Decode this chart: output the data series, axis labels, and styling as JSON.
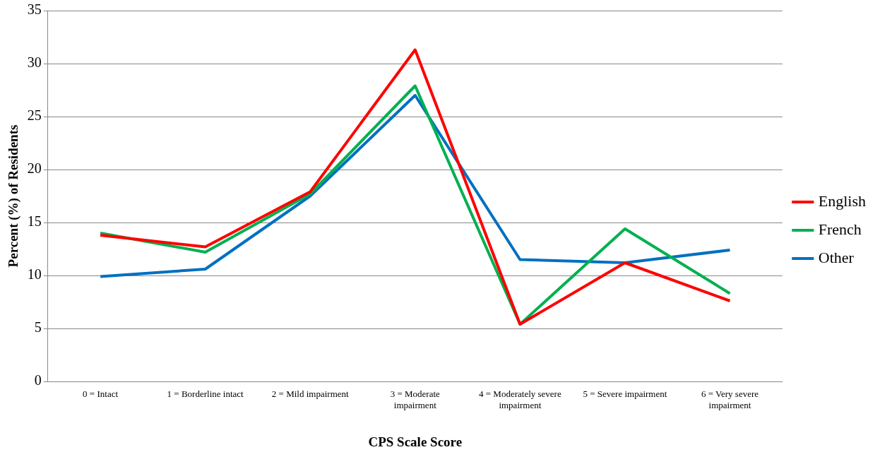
{
  "chart_data": {
    "type": "line",
    "xlabel": "CPS Scale Score",
    "ylabel": "Percent (%) of Residents",
    "categories": [
      "0 = Intact",
      "1 = Borderline intact",
      "2 = Mild impairment",
      "3 = Moderate impairment",
      "4 = Moderately severe impairment",
      "5 = Severe impairment",
      "6 = Very severe impairment"
    ],
    "series": [
      {
        "name": "English",
        "color": "#ff0000",
        "values": [
          13.8,
          12.7,
          17.9,
          31.3,
          5.4,
          11.2,
          7.6
        ]
      },
      {
        "name": "French",
        "color": "#00b050",
        "values": [
          14.0,
          12.2,
          17.7,
          27.9,
          5.4,
          14.4,
          8.3
        ]
      },
      {
        "name": "Other",
        "color": "#0070c0",
        "values": [
          9.9,
          10.6,
          17.5,
          27.0,
          11.5,
          11.2,
          12.4
        ]
      }
    ],
    "ylim": [
      0,
      35
    ],
    "yticks": [
      0,
      5,
      10,
      15,
      20,
      25,
      30,
      35
    ],
    "grid": "y",
    "legend": "right",
    "marker": "none",
    "line_style": "solid"
  }
}
